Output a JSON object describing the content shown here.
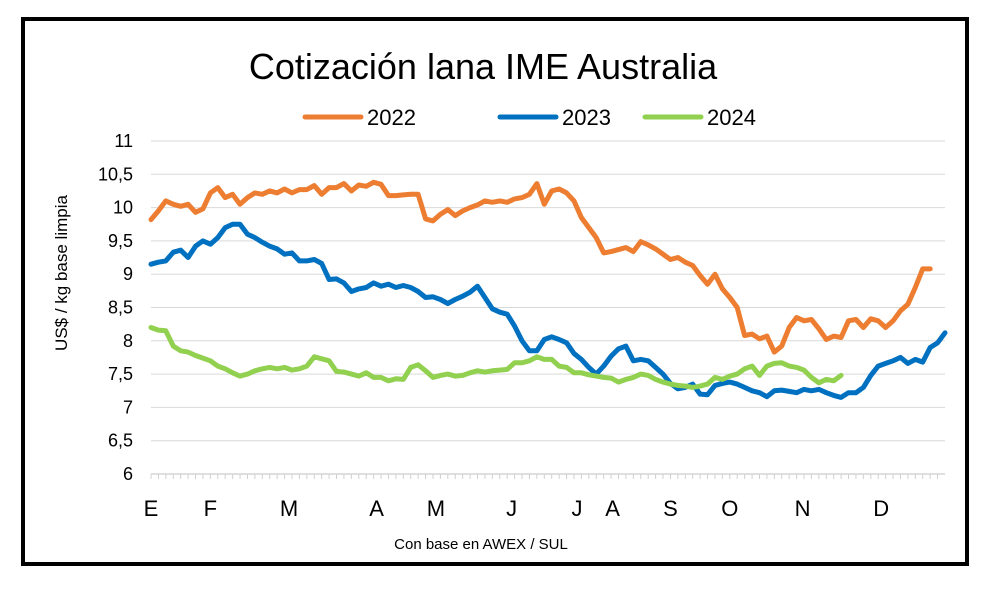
{
  "chart_data": {
    "type": "line",
    "title": "Cotización lana IME Australia",
    "xlabel": "Con base en AWEX / SUL",
    "ylabel": "US$ / kg base limpia",
    "ylim": [
      6,
      11
    ],
    "yticks": [
      "11",
      "10,5",
      "10",
      "9,5",
      "9",
      "8,5",
      "8",
      "7,5",
      "7",
      "6,5",
      "6"
    ],
    "xlim": [
      1,
      52
    ],
    "x_categories": [
      {
        "label": "E",
        "week": 1
      },
      {
        "label": "F",
        "week": 5
      },
      {
        "label": "M",
        "week": 10.3
      },
      {
        "label": "A",
        "week": 16.2
      },
      {
        "label": "M",
        "week": 20.2
      },
      {
        "label": "J",
        "week": 25.3
      },
      {
        "label": "J",
        "week": 29.7
      },
      {
        "label": "A",
        "week": 32.1
      },
      {
        "label": "S",
        "week": 36
      },
      {
        "label": "O",
        "week": 40
      },
      {
        "label": "N",
        "week": 44.9
      },
      {
        "label": "D",
        "week": 50.2
      }
    ],
    "grid": true,
    "legend_position": "top",
    "series": [
      {
        "name": "2022",
        "color": "#ED7D31",
        "points": [
          [
            1,
            9.82
          ],
          [
            1.5,
            9.95
          ],
          [
            2,
            10.1
          ],
          [
            2.5,
            10.05
          ],
          [
            3,
            10.02
          ],
          [
            3.5,
            10.05
          ],
          [
            4,
            9.93
          ],
          [
            4.5,
            9.98
          ],
          [
            5,
            10.22
          ],
          [
            5.5,
            10.3
          ],
          [
            6,
            10.15
          ],
          [
            6.5,
            10.2
          ],
          [
            7,
            10.05
          ],
          [
            7.5,
            10.15
          ],
          [
            8,
            10.22
          ],
          [
            8.5,
            10.2
          ],
          [
            9,
            10.25
          ],
          [
            9.5,
            10.22
          ],
          [
            10,
            10.28
          ],
          [
            10.5,
            10.22
          ],
          [
            11,
            10.27
          ],
          [
            11.5,
            10.27
          ],
          [
            12,
            10.33
          ],
          [
            12.5,
            10.2
          ],
          [
            13,
            10.3
          ],
          [
            13.5,
            10.3
          ],
          [
            14,
            10.36
          ],
          [
            14.5,
            10.25
          ],
          [
            15,
            10.34
          ],
          [
            15.5,
            10.32
          ],
          [
            16,
            10.38
          ],
          [
            16.5,
            10.35
          ],
          [
            17,
            10.18
          ],
          [
            17.5,
            10.18
          ],
          [
            18,
            10.19
          ],
          [
            18.5,
            10.2
          ],
          [
            19,
            10.2
          ],
          [
            19.5,
            9.83
          ],
          [
            20,
            9.8
          ],
          [
            20.5,
            9.9
          ],
          [
            21,
            9.97
          ],
          [
            21.5,
            9.88
          ],
          [
            22,
            9.95
          ],
          [
            22.5,
            10.0
          ],
          [
            23,
            10.04
          ],
          [
            23.5,
            10.1
          ],
          [
            24,
            10.08
          ],
          [
            24.5,
            10.1
          ],
          [
            25,
            10.08
          ],
          [
            25.5,
            10.13
          ],
          [
            26,
            10.15
          ],
          [
            26.5,
            10.2
          ],
          [
            27,
            10.36
          ],
          [
            27.5,
            10.05
          ],
          [
            28,
            10.25
          ],
          [
            28.5,
            10.28
          ],
          [
            29,
            10.22
          ],
          [
            29.5,
            10.1
          ],
          [
            30,
            9.85
          ],
          [
            30.5,
            9.7
          ],
          [
            31,
            9.55
          ],
          [
            31.5,
            9.32
          ],
          [
            32,
            9.34
          ],
          [
            32.5,
            9.37
          ],
          [
            33,
            9.4
          ],
          [
            33.5,
            9.34
          ],
          [
            34,
            9.49
          ],
          [
            34.5,
            9.44
          ],
          [
            35,
            9.38
          ],
          [
            35.5,
            9.3
          ],
          [
            36,
            9.22
          ],
          [
            36.5,
            9.25
          ],
          [
            37,
            9.18
          ],
          [
            37.5,
            9.13
          ],
          [
            38,
            8.98
          ],
          [
            38.5,
            8.85
          ],
          [
            39,
            9.0
          ],
          [
            39.5,
            8.78
          ],
          [
            40,
            8.65
          ],
          [
            40.5,
            8.5
          ],
          [
            41,
            8.08
          ],
          [
            41.5,
            8.1
          ],
          [
            42,
            8.03
          ],
          [
            42.5,
            8.07
          ],
          [
            43,
            7.83
          ],
          [
            43.5,
            7.92
          ],
          [
            44,
            8.2
          ],
          [
            44.5,
            8.35
          ],
          [
            45,
            8.3
          ],
          [
            45.5,
            8.32
          ],
          [
            46,
            8.18
          ],
          [
            46.5,
            8.02
          ],
          [
            47,
            8.07
          ],
          [
            47.5,
            8.05
          ],
          [
            48,
            8.3
          ],
          [
            48.5,
            8.32
          ],
          [
            49,
            8.2
          ],
          [
            49.5,
            8.33
          ],
          [
            50,
            8.3
          ],
          [
            50.5,
            8.2
          ],
          [
            51,
            8.3
          ],
          [
            51.5,
            8.45
          ],
          [
            52,
            8.55
          ],
          [
            52.5,
            8.8
          ],
          [
            53,
            9.08
          ],
          [
            53.5,
            9.08
          ]
        ]
      },
      {
        "name": "2023",
        "color": "#0070C0",
        "points": [
          [
            1,
            9.15
          ],
          [
            1.5,
            9.18
          ],
          [
            2,
            9.2
          ],
          [
            2.5,
            9.33
          ],
          [
            3,
            9.36
          ],
          [
            3.5,
            9.25
          ],
          [
            4,
            9.42
          ],
          [
            4.5,
            9.5
          ],
          [
            5,
            9.45
          ],
          [
            5.5,
            9.55
          ],
          [
            6,
            9.7
          ],
          [
            6.5,
            9.75
          ],
          [
            7,
            9.75
          ],
          [
            7.5,
            9.6
          ],
          [
            8,
            9.55
          ],
          [
            8.5,
            9.48
          ],
          [
            9,
            9.42
          ],
          [
            9.5,
            9.38
          ],
          [
            10,
            9.3
          ],
          [
            10.5,
            9.32
          ],
          [
            11,
            9.2
          ],
          [
            11.5,
            9.2
          ],
          [
            12,
            9.22
          ],
          [
            12.5,
            9.16
          ],
          [
            13,
            8.92
          ],
          [
            13.5,
            8.93
          ],
          [
            14,
            8.87
          ],
          [
            14.5,
            8.74
          ],
          [
            15,
            8.78
          ],
          [
            15.5,
            8.8
          ],
          [
            16,
            8.87
          ],
          [
            16.5,
            8.82
          ],
          [
            17,
            8.85
          ],
          [
            17.5,
            8.8
          ],
          [
            18,
            8.83
          ],
          [
            18.5,
            8.8
          ],
          [
            19,
            8.74
          ],
          [
            19.5,
            8.65
          ],
          [
            20,
            8.66
          ],
          [
            20.5,
            8.62
          ],
          [
            21,
            8.56
          ],
          [
            21.5,
            8.62
          ],
          [
            22,
            8.67
          ],
          [
            22.5,
            8.73
          ],
          [
            23,
            8.82
          ],
          [
            23.5,
            8.65
          ],
          [
            24,
            8.48
          ],
          [
            24.5,
            8.43
          ],
          [
            25,
            8.4
          ],
          [
            25.5,
            8.22
          ],
          [
            26,
            8.0
          ],
          [
            26.5,
            7.85
          ],
          [
            27,
            7.85
          ],
          [
            27.5,
            8.02
          ],
          [
            28,
            8.06
          ],
          [
            28.5,
            8.02
          ],
          [
            29,
            7.97
          ],
          [
            29.5,
            7.81
          ],
          [
            30,
            7.72
          ],
          [
            30.5,
            7.6
          ],
          [
            31,
            7.5
          ],
          [
            31.5,
            7.62
          ],
          [
            32,
            7.77
          ],
          [
            32.5,
            7.88
          ],
          [
            33,
            7.92
          ],
          [
            33.5,
            7.7
          ],
          [
            34,
            7.72
          ],
          [
            34.5,
            7.7
          ],
          [
            35,
            7.6
          ],
          [
            35.5,
            7.5
          ],
          [
            36,
            7.36
          ],
          [
            36.5,
            7.28
          ],
          [
            37,
            7.3
          ],
          [
            37.5,
            7.35
          ],
          [
            38,
            7.2
          ],
          [
            38.5,
            7.19
          ],
          [
            39,
            7.33
          ],
          [
            39.5,
            7.36
          ],
          [
            40,
            7.38
          ],
          [
            40.5,
            7.35
          ],
          [
            41,
            7.3
          ],
          [
            41.5,
            7.25
          ],
          [
            42,
            7.22
          ],
          [
            42.5,
            7.16
          ],
          [
            43,
            7.25
          ],
          [
            43.5,
            7.26
          ],
          [
            44,
            7.24
          ],
          [
            44.5,
            7.22
          ],
          [
            45,
            7.27
          ],
          [
            45.5,
            7.25
          ],
          [
            46,
            7.27
          ],
          [
            46.5,
            7.22
          ],
          [
            47,
            7.18
          ],
          [
            47.5,
            7.15
          ],
          [
            48,
            7.22
          ],
          [
            48.5,
            7.22
          ],
          [
            49,
            7.3
          ],
          [
            49.5,
            7.48
          ],
          [
            50,
            7.62
          ],
          [
            50.5,
            7.66
          ],
          [
            51,
            7.7
          ],
          [
            51.5,
            7.75
          ],
          [
            52,
            7.66
          ],
          [
            52.5,
            7.72
          ],
          [
            53,
            7.68
          ],
          [
            53.5,
            7.9
          ],
          [
            54,
            7.97
          ],
          [
            54.5,
            8.12
          ]
        ]
      },
      {
        "name": "2024",
        "color": "#92D050",
        "points": [
          [
            1,
            8.2
          ],
          [
            1.5,
            8.16
          ],
          [
            2,
            8.15
          ],
          [
            2.5,
            7.92
          ],
          [
            3,
            7.85
          ],
          [
            3.5,
            7.83
          ],
          [
            4,
            7.78
          ],
          [
            4.5,
            7.74
          ],
          [
            5,
            7.7
          ],
          [
            5.5,
            7.62
          ],
          [
            6,
            7.58
          ],
          [
            6.5,
            7.52
          ],
          [
            7,
            7.47
          ],
          [
            7.5,
            7.5
          ],
          [
            8,
            7.55
          ],
          [
            8.5,
            7.58
          ],
          [
            9,
            7.6
          ],
          [
            9.5,
            7.58
          ],
          [
            10,
            7.6
          ],
          [
            10.5,
            7.56
          ],
          [
            11,
            7.58
          ],
          [
            11.5,
            7.62
          ],
          [
            12,
            7.76
          ],
          [
            12.5,
            7.73
          ],
          [
            13,
            7.7
          ],
          [
            13.5,
            7.54
          ],
          [
            14,
            7.53
          ],
          [
            14.5,
            7.5
          ],
          [
            15,
            7.47
          ],
          [
            15.5,
            7.52
          ],
          [
            16,
            7.45
          ],
          [
            16.5,
            7.45
          ],
          [
            17,
            7.4
          ],
          [
            17.5,
            7.43
          ],
          [
            18,
            7.42
          ],
          [
            18.5,
            7.6
          ],
          [
            19,
            7.64
          ],
          [
            19.5,
            7.55
          ],
          [
            20,
            7.45
          ],
          [
            20.5,
            7.48
          ],
          [
            21,
            7.5
          ],
          [
            21.5,
            7.47
          ],
          [
            22,
            7.48
          ],
          [
            22.5,
            7.52
          ],
          [
            23,
            7.55
          ],
          [
            23.5,
            7.53
          ],
          [
            24,
            7.55
          ],
          [
            24.5,
            7.56
          ],
          [
            25,
            7.57
          ],
          [
            25.5,
            7.67
          ],
          [
            26,
            7.67
          ],
          [
            26.5,
            7.7
          ],
          [
            27,
            7.76
          ],
          [
            27.5,
            7.72
          ],
          [
            28,
            7.72
          ],
          [
            28.5,
            7.62
          ],
          [
            29,
            7.6
          ],
          [
            29.5,
            7.52
          ],
          [
            30,
            7.52
          ],
          [
            30.5,
            7.49
          ],
          [
            31,
            7.47
          ],
          [
            31.5,
            7.45
          ],
          [
            32,
            7.44
          ],
          [
            32.5,
            7.38
          ],
          [
            33,
            7.42
          ],
          [
            33.5,
            7.45
          ],
          [
            34,
            7.5
          ],
          [
            34.5,
            7.48
          ],
          [
            35,
            7.42
          ],
          [
            35.5,
            7.38
          ],
          [
            36,
            7.35
          ],
          [
            36.5,
            7.33
          ],
          [
            37,
            7.32
          ],
          [
            37.5,
            7.3
          ],
          [
            38,
            7.32
          ],
          [
            38.5,
            7.35
          ],
          [
            39,
            7.45
          ],
          [
            39.5,
            7.42
          ],
          [
            40,
            7.47
          ],
          [
            40.5,
            7.5
          ],
          [
            41,
            7.58
          ],
          [
            41.5,
            7.62
          ],
          [
            42,
            7.48
          ],
          [
            42.5,
            7.62
          ],
          [
            43,
            7.66
          ],
          [
            43.5,
            7.67
          ],
          [
            44,
            7.62
          ],
          [
            44.5,
            7.6
          ],
          [
            45,
            7.56
          ],
          [
            45.5,
            7.45
          ],
          [
            46,
            7.37
          ],
          [
            46.5,
            7.42
          ],
          [
            47,
            7.4
          ],
          [
            47.5,
            7.48
          ]
        ]
      }
    ]
  }
}
